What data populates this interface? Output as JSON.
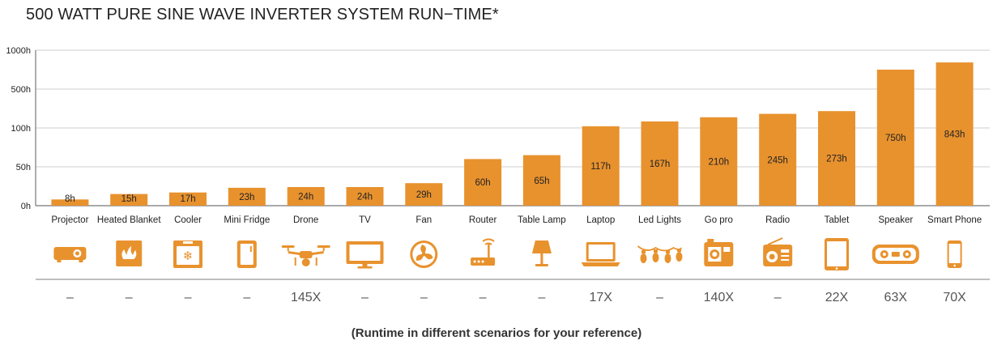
{
  "title": "500 WATT PURE SINE WAVE INVERTER SYSTEM RUN−TIME*",
  "footnote": "(Runtime in different scenarios for your reference)",
  "colors": {
    "bar": "#E8922E",
    "icon": "#E8922E",
    "grid": "#CFCFCF",
    "axis": "#777777"
  },
  "chart_data": {
    "type": "bar",
    "yticks": [
      "0h",
      "50h",
      "100h",
      "500h",
      "1000h"
    ],
    "categories": [
      "Projector",
      "Heated Blanket",
      "Cooler",
      "Mini Fridge",
      "Drone",
      "TV",
      "Fan",
      "Router",
      "Table Lamp",
      "Laptop",
      "Led Lights",
      "Go pro",
      "Radio",
      "Tablet",
      "Speaker",
      "Smart Phone"
    ],
    "values": [
      8,
      15,
      17,
      23,
      24,
      24,
      29,
      60,
      65,
      117,
      167,
      210,
      245,
      273,
      750,
      843
    ],
    "labels": [
      "8h",
      "15h",
      "17h",
      "23h",
      "24h",
      "24h",
      "29h",
      "60h",
      "65h",
      "117h",
      "167h",
      "210h",
      "245h",
      "273h",
      "750h",
      "843h"
    ],
    "icons": [
      "projector-icon",
      "heated-blanket-icon",
      "cooler-icon",
      "mini-fridge-icon",
      "drone-icon",
      "tv-icon",
      "fan-icon",
      "router-icon",
      "table-lamp-icon",
      "laptop-icon",
      "led-lights-icon",
      "gopro-icon",
      "radio-icon",
      "tablet-icon",
      "speaker-icon",
      "smart-phone-icon"
    ],
    "multipliers": [
      "–",
      "–",
      "–",
      "–",
      "145X",
      "–",
      "–",
      "–",
      "–",
      "17X",
      "–",
      "140X",
      "–",
      "22X",
      "63X",
      "70X"
    ]
  }
}
